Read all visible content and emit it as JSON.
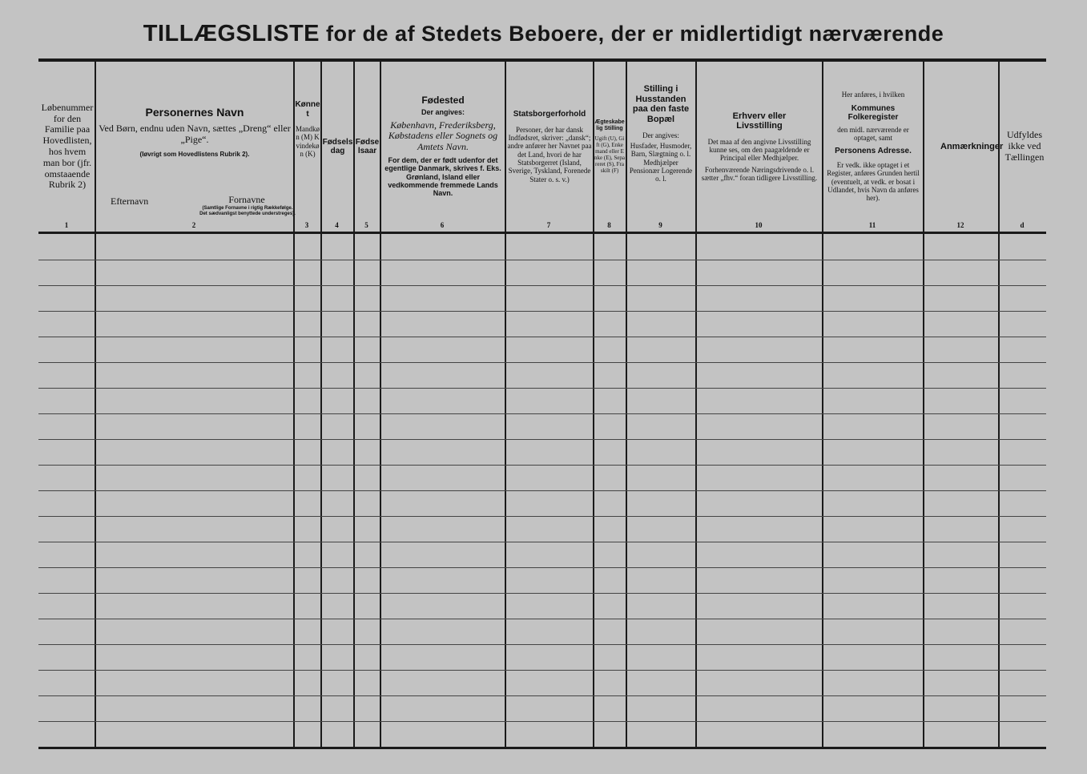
{
  "title": {
    "part1": "TILLÆGSLISTE",
    "part2": "for de af Stedets Beboere, der er midlertidigt nærværende"
  },
  "columns": [
    {
      "number": "1",
      "text": "Løbenummer for den Familie paa Hovedlisten, hos hvem man bor (jfr. omstaaende Rubrik 2)"
    },
    {
      "number": "2",
      "heading": "Personernes Navn",
      "text": "Ved Børn, endnu uden Navn, sættes „Dreng“ eller „Pige“.",
      "note": "(Iøvrigt som Hovedlistens Rubrik 2).",
      "sub1": "Efternavn",
      "sub2": "Fornavne",
      "sub2_note": "(Samtlige Fornavne i rigtig Rækkefølge. Det sædvanligst benyttede understreges)."
    },
    {
      "number": "3",
      "heading": "Kønnet",
      "text": "Mandkøn (M) Kvindekøn (K)"
    },
    {
      "number": "4",
      "heading": "Fødselsdag"
    },
    {
      "number": "5",
      "heading": "Fødselsaar"
    },
    {
      "number": "6",
      "heading": "Fødested",
      "sub": "Der angives:",
      "text": "København, Frederiksberg, Købstadens eller Sognets og Amtets Navn.",
      "note": "For dem, der er født udenfor det egentlige Danmark, skrives f. Eks. Grønland, Island eller vedkommende fremmede Lands Navn."
    },
    {
      "number": "7",
      "heading": "Statsborgerforhold",
      "text": "Personer, der har dansk Indfødsret, skriver: „dansk“; andre anfører her Navnet paa det Land, hvori de har Statsborgerret (Island, Sverige, Tyskland, Forenede Stater o. s. v.)"
    },
    {
      "number": "8",
      "heading": "Ægteskabelig Stilling",
      "text": "Ugift (U), Gift (G), Enkemand eller Enke (E), Separeret (S), Fraskilt (F)"
    },
    {
      "number": "9",
      "heading": "Stilling i Husstanden paa den faste Bopæl",
      "sub": "Der angives:",
      "text": "Husfader, Husmoder, Barn, Slægtning o. l. Medhjælper Pensionær Logerende o. l."
    },
    {
      "number": "10",
      "heading": "Erhverv eller Livsstilling",
      "text": "Det maa af den angivne Livsstilling kunne ses, om den paagældende er Principal eller Medhjælper.",
      "note": "Forhenværende Næringsdrivende o. l. sætter „fhv.“ foran tidligere Livsstilling."
    },
    {
      "number": "11",
      "pre": "Her anføres, i hvilken",
      "heading": "Kommunes Folkeregister",
      "text": "den midl. nærværende er optaget, samt",
      "heading2": "Personens Adresse.",
      "note": "Er vedk. ikke optaget i et Register, anføres Grunden hertil (eventuelt, at vedk. er bosat i Udlandet, hvis Navn da anføres her)."
    },
    {
      "number": "12",
      "heading": "Anmærkninger"
    },
    {
      "number": "d",
      "text": "Udfyldes ikke ved Tællingen"
    }
  ]
}
